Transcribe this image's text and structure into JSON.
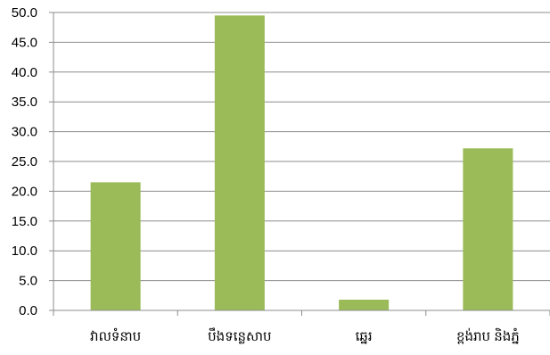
{
  "chart_data": {
    "type": "bar",
    "categories": [
      "វាលទំនាប",
      "បឹងទន្លេសាប",
      "ឆ្នេរ",
      "ខ្ពង់រាប និងភ្នំ"
    ],
    "values": [
      21.5,
      49.5,
      1.8,
      27.2
    ],
    "ylim": [
      0,
      50
    ],
    "yticks": [
      "0.0",
      "5.0",
      "10.0",
      "15.0",
      "20.0",
      "25.0",
      "30.0",
      "35.0",
      "40.0",
      "45.0",
      "50.0"
    ],
    "grid": true,
    "legend": "none",
    "colors": {
      "bar": "#9BBB59",
      "grid": "#8C8C8C",
      "text": "#000000"
    }
  }
}
